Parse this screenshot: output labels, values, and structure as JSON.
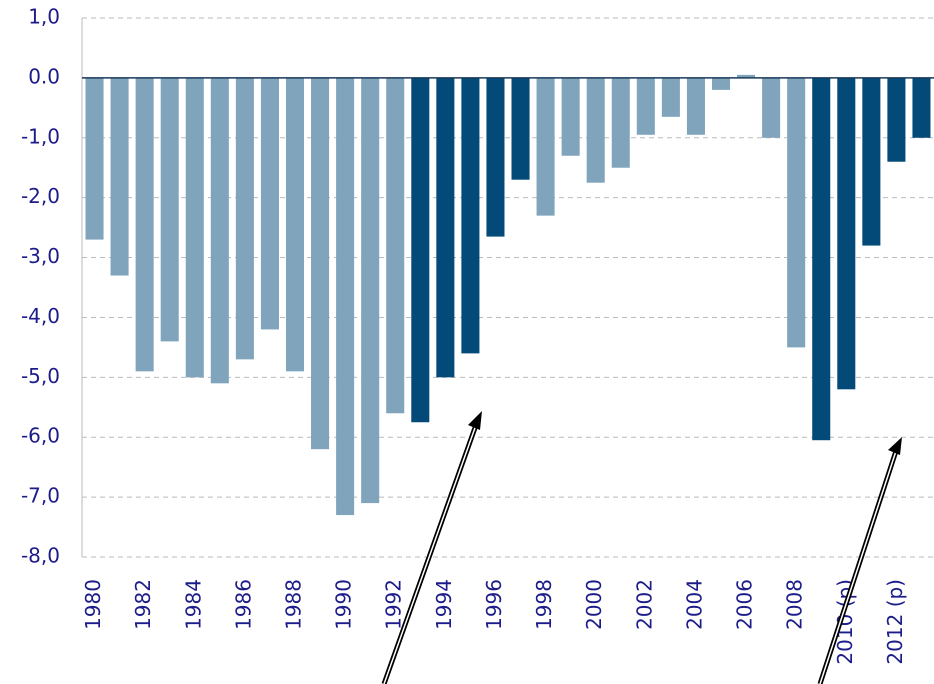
{
  "chart_data": {
    "type": "bar",
    "categories": [
      "1980",
      null,
      "1982",
      null,
      "1984",
      null,
      "1986",
      null,
      "1988",
      null,
      "1990",
      null,
      "1992",
      null,
      "1994",
      null,
      "1996",
      null,
      "1998",
      null,
      "2000",
      null,
      "2002",
      null,
      "2004",
      null,
      "2006",
      null,
      "2008",
      null,
      "2010 (p)",
      null,
      "2012 (p)",
      null
    ],
    "values": [
      -2.7,
      -3.3,
      -4.9,
      -4.4,
      -5.0,
      -5.1,
      -4.7,
      -4.2,
      -4.9,
      -6.2,
      -7.3,
      -7.1,
      -5.6,
      -5.75,
      -5.0,
      -4.6,
      -2.65,
      -1.7,
      -2.3,
      -1.3,
      -1.75,
      -1.5,
      -0.95,
      -0.65,
      -0.95,
      -0.2,
      0.05,
      -1.0,
      -4.5,
      -6.05,
      -5.2,
      -2.8,
      -1.4,
      -1.0
    ],
    "colors": [
      "#7fa4bb",
      "#7fa4bb",
      "#7fa4bb",
      "#7fa4bb",
      "#7fa4bb",
      "#7fa4bb",
      "#7fa4bb",
      "#7fa4bb",
      "#7fa4bb",
      "#7fa4bb",
      "#7fa4bb",
      "#7fa4bb",
      "#7fa4bb",
      "#034a78",
      "#034a78",
      "#034a78",
      "#034a78",
      "#034a78",
      "#7fa4bb",
      "#7fa4bb",
      "#7fa4bb",
      "#7fa4bb",
      "#7fa4bb",
      "#7fa4bb",
      "#7fa4bb",
      "#7fa4bb",
      "#7fa4bb",
      "#7fa4bb",
      "#7fa4bb",
      "#034a78",
      "#034a78",
      "#034a78",
      "#034a78",
      "#034a78"
    ],
    "ylim": [
      -8,
      1
    ],
    "yticks": [
      {
        "value": 1,
        "label": "1,0"
      },
      {
        "value": 0,
        "label": "0.0"
      },
      {
        "value": -1,
        "label": "-1,0"
      },
      {
        "value": -2,
        "label": "-2,0"
      },
      {
        "value": -3,
        "label": "-3,0"
      },
      {
        "value": -4,
        "label": "-4,0"
      },
      {
        "value": -5,
        "label": "-5,0"
      },
      {
        "value": -6,
        "label": "-6,0"
      },
      {
        "value": -7,
        "label": "-7,0"
      },
      {
        "value": -8,
        "label": "-8,0"
      }
    ],
    "grid": true
  }
}
